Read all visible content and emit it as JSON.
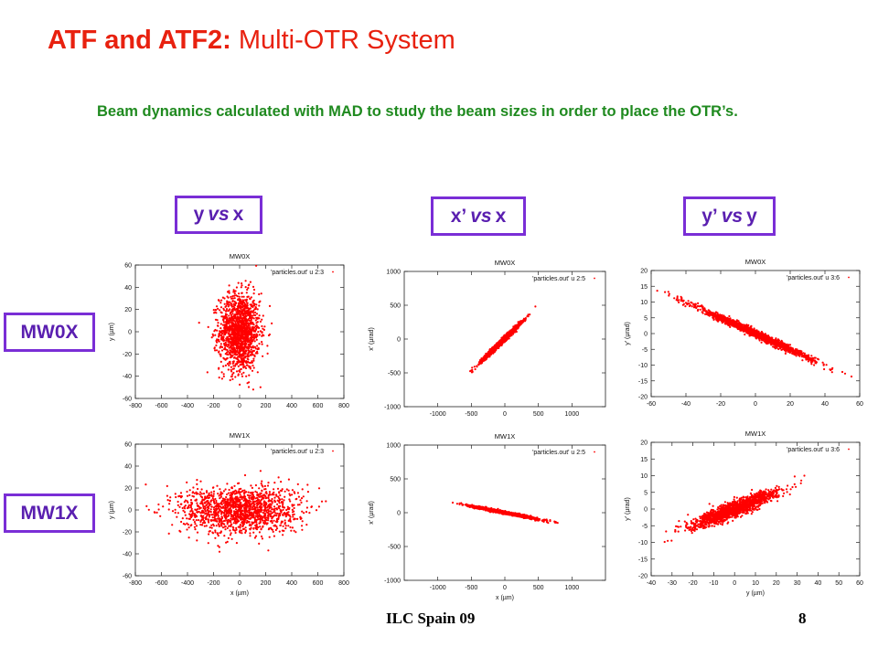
{
  "slide": {
    "title_bold": "ATF and ATF2:",
    "title_rest": " Multi-OTR System",
    "subtitle": "Beam dynamics calculated with MAD to study the beam sizes in order to place the OTR’s.",
    "col_labels": {
      "c1": [
        "y",
        "vs",
        "x"
      ],
      "c2": [
        "x’",
        "vs",
        "x"
      ],
      "c3": [
        "y’",
        "vs",
        "y"
      ]
    },
    "row_labels": {
      "r1": "MW0X",
      "r2": "MW1X"
    },
    "footer_left": "ILC Spain 09",
    "footer_right": "8",
    "colors": {
      "title": "#e8210f",
      "subtitle": "#1f8a1f",
      "label_border": "#7a2ed6",
      "points": "#ff0000"
    }
  },
  "chart_data": [
    {
      "type": "scatter",
      "title": "MW0X",
      "legend": "'particles.out' u 2:3",
      "legend_position": "top-right",
      "xlabel": "",
      "ylabel": "y (µm)",
      "xlim": [
        -800,
        800
      ],
      "xticks": [
        -800,
        -600,
        -400,
        -200,
        0,
        200,
        400,
        600,
        800
      ],
      "ylim": [
        -60,
        60
      ],
      "yticks": [
        -60,
        -40,
        -20,
        0,
        20,
        40,
        60
      ],
      "cloud": {
        "center": [
          0,
          0
        ],
        "x_half_extent": 200,
        "y_half_extent": 45,
        "slope": 0
      }
    },
    {
      "type": "scatter",
      "title": "MW0X",
      "legend": "'particles.out' u 2:5",
      "legend_position": "top-right",
      "xlabel": "",
      "ylabel": "x' (µrad)",
      "xlim": [
        -1500,
        1500
      ],
      "xticks": [
        -1000,
        -500,
        0,
        500,
        1000
      ],
      "ylim": [
        -1000,
        1000
      ],
      "yticks": [
        -1000,
        -500,
        0,
        500,
        1000
      ],
      "cloud": {
        "center": [
          -60,
          -50
        ],
        "x_half_extent": 370,
        "y_half_extent": 50,
        "slope": 0.95
      }
    },
    {
      "type": "scatter",
      "title": "MW0X",
      "legend": "'particles.out' u 3:6",
      "legend_position": "top-right",
      "xlabel": "",
      "ylabel": "y' (µrad)",
      "xlim": [
        -60,
        60
      ],
      "xticks": [
        -60,
        -40,
        -20,
        0,
        20,
        40,
        60
      ],
      "ylim": [
        -20,
        20
      ],
      "yticks": [
        -20,
        -15,
        -10,
        -5,
        0,
        5,
        10,
        15,
        20
      ],
      "cloud": {
        "center": [
          0,
          0
        ],
        "x_half_extent": 44,
        "y_half_extent": 1.5,
        "slope": -0.25
      }
    },
    {
      "type": "scatter",
      "title": "MW1X",
      "legend": "'particles.out' u 2:3",
      "legend_position": "top-right",
      "xlabel": "x (µm)",
      "ylabel": "y (µm)",
      "xlim": [
        -800,
        800
      ],
      "xticks": [
        -800,
        -600,
        -400,
        -200,
        0,
        200,
        400,
        600,
        800
      ],
      "ylim": [
        -60,
        60
      ],
      "yticks": [
        -60,
        -40,
        -20,
        0,
        20,
        40,
        60
      ],
      "cloud": {
        "center": [
          0,
          0
        ],
        "x_half_extent": 580,
        "y_half_extent": 28,
        "slope": 0
      }
    },
    {
      "type": "scatter",
      "title": "MW1X",
      "legend": "'particles.out' u 2:5",
      "legend_position": "top-right",
      "xlabel": "x (µm)",
      "ylabel": "x' (µrad)",
      "xlim": [
        -1500,
        1500
      ],
      "xticks": [
        -1000,
        -500,
        0,
        500,
        1000
      ],
      "ylim": [
        -1000,
        1000
      ],
      "yticks": [
        -1000,
        -500,
        0,
        500,
        1000
      ],
      "cloud": {
        "center": [
          0,
          0
        ],
        "x_half_extent": 620,
        "y_half_extent": 25,
        "slope": -0.19
      }
    },
    {
      "type": "scatter",
      "title": "MW1X",
      "legend": "'particles.out' u 3:6",
      "legend_position": "top-right",
      "xlabel": "y (µm)",
      "ylabel": "y' (µrad)",
      "xlim": [
        -40,
        60
      ],
      "xticks": [
        -40,
        -30,
        -20,
        -10,
        0,
        10,
        20,
        30,
        40,
        50,
        60
      ],
      "ylim": [
        -20,
        20
      ],
      "yticks": [
        -20,
        -15,
        -10,
        -5,
        0,
        5,
        10,
        15,
        20
      ],
      "cloud": {
        "center": [
          0,
          0
        ],
        "x_half_extent": 27,
        "y_half_extent": 3,
        "slope": 0.24
      }
    }
  ]
}
